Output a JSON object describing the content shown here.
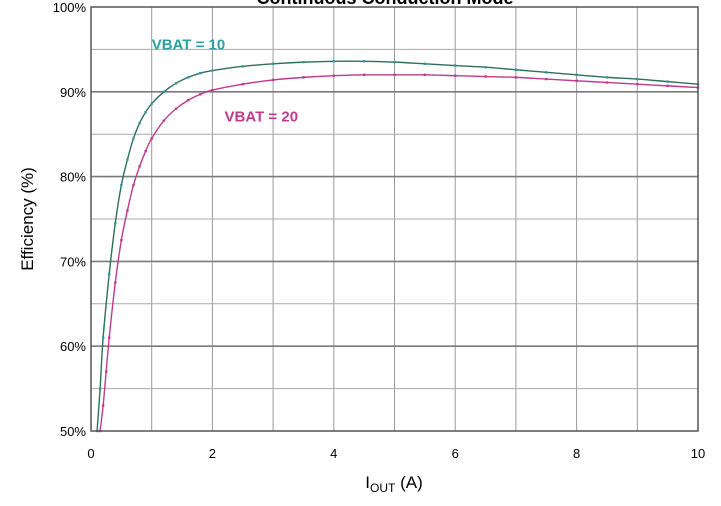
{
  "chart_data": {
    "type": "line",
    "title": "Continuous Conduction Mode",
    "xlabel_main": "I",
    "xlabel_sub": "OUT",
    "xlabel_unit": " (A)",
    "ylabel": "Efficiency (%)",
    "xlim": [
      0,
      10
    ],
    "ylim": [
      50,
      100
    ],
    "grid": true,
    "x_ticks": [
      0,
      2,
      4,
      6,
      8,
      10
    ],
    "y_ticks": [
      50,
      60,
      70,
      80,
      90,
      100
    ],
    "x_tick_labels": [
      "0",
      "2",
      "4",
      "6",
      "8",
      "10"
    ],
    "y_tick_labels": [
      "50%",
      "60%",
      "70%",
      "80%",
      "90%",
      "100%"
    ],
    "series": [
      {
        "name": "VBAT = 10",
        "color": "#2f6f5a",
        "marker_color": "#2a9a9a",
        "label_color": "#2aa0a0",
        "x": [
          0.1,
          0.15,
          0.2,
          0.3,
          0.4,
          0.5,
          0.6,
          0.7,
          0.8,
          0.9,
          1.0,
          1.2,
          1.4,
          1.6,
          1.8,
          2.0,
          2.5,
          3.0,
          3.5,
          4.0,
          4.5,
          5.0,
          5.5,
          6.0,
          6.5,
          7.0,
          7.5,
          8.0,
          8.5,
          9.0,
          9.5,
          10.0
        ],
        "y": [
          50.0,
          55.0,
          61.0,
          68.5,
          74.5,
          79.0,
          82.0,
          84.5,
          86.3,
          87.6,
          88.6,
          90.0,
          91.0,
          91.7,
          92.2,
          92.5,
          93.0,
          93.3,
          93.5,
          93.6,
          93.6,
          93.5,
          93.3,
          93.1,
          92.9,
          92.6,
          92.3,
          92.0,
          91.7,
          91.5,
          91.2,
          90.9
        ]
      },
      {
        "name": "VBAT = 20",
        "color": "#c0398f",
        "marker_color": "#c0398f",
        "label_color": "#c0398f",
        "x": [
          0.15,
          0.2,
          0.25,
          0.3,
          0.4,
          0.5,
          0.6,
          0.7,
          0.8,
          0.9,
          1.0,
          1.2,
          1.4,
          1.6,
          1.8,
          2.0,
          2.5,
          3.0,
          3.5,
          4.0,
          4.5,
          5.0,
          5.5,
          6.0,
          6.5,
          7.0,
          7.5,
          8.0,
          8.5,
          9.0,
          9.5,
          10.0
        ],
        "y": [
          50.0,
          53.0,
          57.0,
          61.0,
          67.5,
          72.5,
          76.0,
          79.0,
          81.2,
          83.0,
          84.5,
          86.6,
          88.0,
          89.0,
          89.7,
          90.2,
          90.9,
          91.4,
          91.7,
          91.9,
          92.0,
          92.0,
          92.0,
          91.9,
          91.8,
          91.7,
          91.5,
          91.3,
          91.1,
          90.9,
          90.7,
          90.5
        ]
      }
    ],
    "annotations": [
      {
        "text": "VBAT = 10",
        "x": 1.0,
        "y": 95.0,
        "series": 0
      },
      {
        "text": "VBAT = 20",
        "x": 2.2,
        "y": 86.5,
        "series": 1
      }
    ]
  }
}
